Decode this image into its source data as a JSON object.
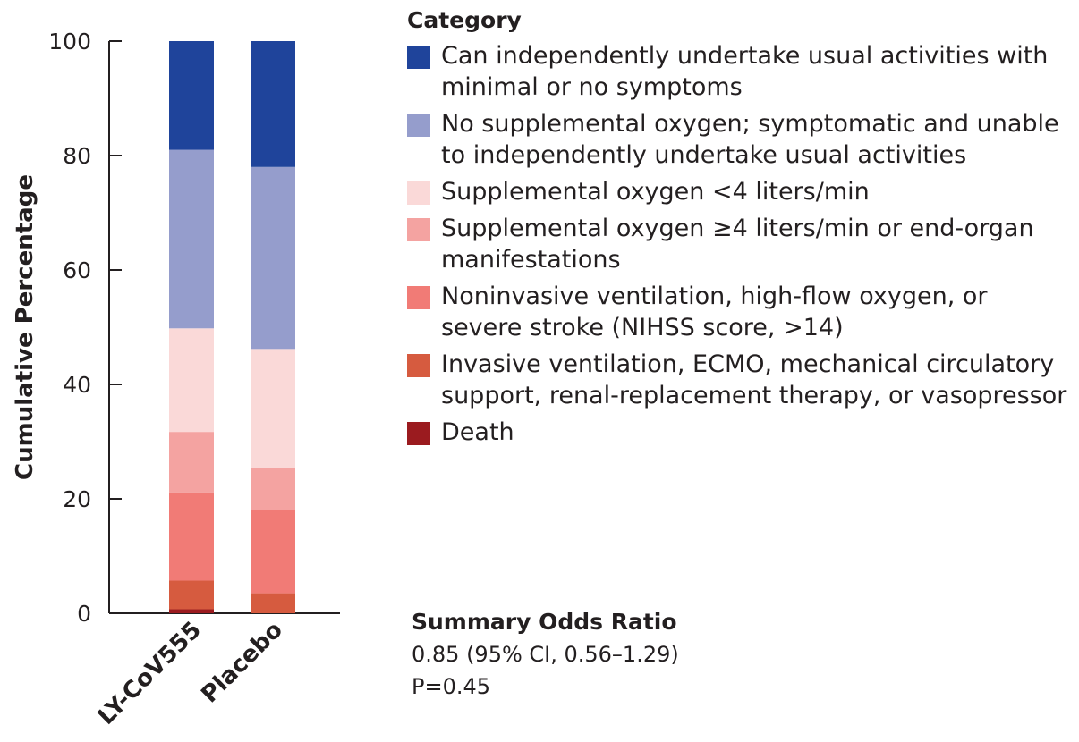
{
  "chart_data": {
    "type": "bar",
    "stacked": true,
    "ylabel": "Cumulative Percentage",
    "ylim": [
      0,
      100
    ],
    "yticks": [
      "0",
      "20",
      "40",
      "60",
      "80",
      "100"
    ],
    "categories": [
      "LY-CoV555",
      "Placebo"
    ],
    "legend_title": "Category",
    "series": [
      {
        "name": "Death",
        "color": "#9b1b1f",
        "values": [
          0.7,
          0.0
        ]
      },
      {
        "name": "Invasive ventilation, ECMO, mechanical circulatory support, renal-replacement therapy, or vasopressor",
        "color": "#d65b3f",
        "values": [
          5.0,
          3.5
        ]
      },
      {
        "name": "Noninvasive ventilation, high-flow oxygen, or severe stroke (NIHSS score, >14)",
        "color": "#f17b76",
        "values": [
          15.4,
          14.5
        ]
      },
      {
        "name": "Supplemental oxygen ≥4 liters/min or end-organ manifestations",
        "color": "#f4a3a1",
        "values": [
          10.6,
          7.4
        ]
      },
      {
        "name": "Supplemental oxygen <4 liters/min",
        "color": "#fad9d8",
        "values": [
          18.1,
          20.8
        ]
      },
      {
        "name": "No supplemental oxygen; symptomatic and unable to independently undertake usual activities",
        "color": "#959dcc",
        "values": [
          31.2,
          31.8
        ]
      },
      {
        "name": "Can independently undertake usual activities with minimal or no symptoms",
        "color": "#1f449b",
        "values": [
          19.0,
          22.0
        ]
      }
    ]
  },
  "summary": {
    "title": "Summary Odds Ratio",
    "value": "0.85 (95% CI, 0.56–1.29)",
    "p": "P=0.45"
  }
}
